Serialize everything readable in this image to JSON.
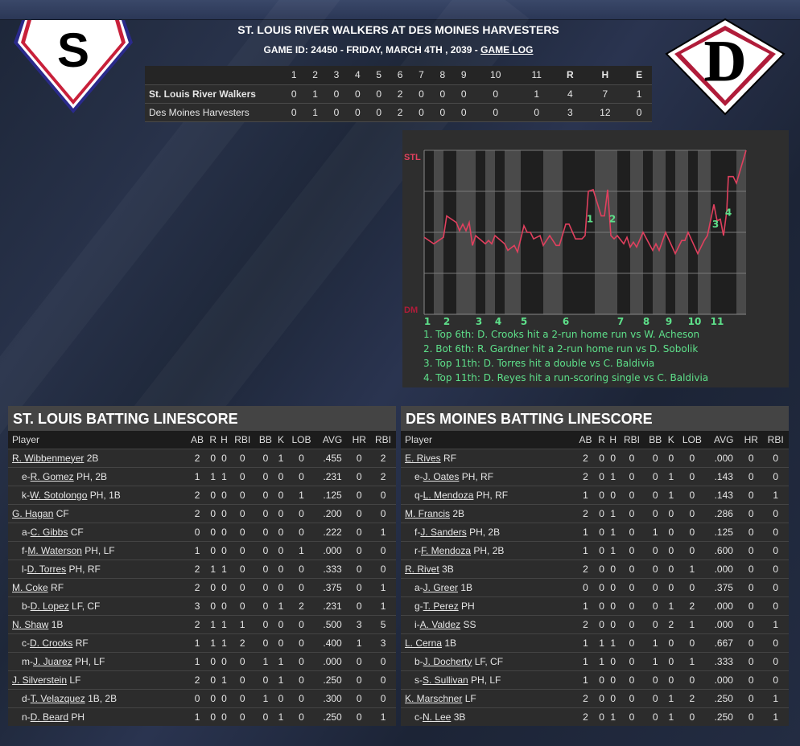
{
  "header": {
    "title": "ST. LOUIS RIVER WALKERS AT DES MOINES HARVESTERS",
    "game_info": "GAME ID: 24450 - FRIDAY, MARCH 4TH , 2039 - ",
    "game_log_link": "GAME LOG"
  },
  "logos": {
    "away_letter": "S",
    "home_letter": "D"
  },
  "linescore": {
    "columns": [
      "1",
      "2",
      "3",
      "4",
      "5",
      "6",
      "7",
      "8",
      "9",
      "10",
      "11",
      "R",
      "H",
      "E"
    ],
    "rows": [
      {
        "team": "St. Louis River Walkers",
        "values": [
          "0",
          "1",
          "0",
          "0",
          "0",
          "2",
          "0",
          "0",
          "0",
          "0",
          "1",
          "4",
          "7",
          "1"
        ]
      },
      {
        "team": "Des Moines Harvesters",
        "values": [
          "0",
          "1",
          "0",
          "0",
          "0",
          "2",
          "0",
          "0",
          "0",
          "0",
          "0",
          "3",
          "12",
          "0"
        ]
      }
    ]
  },
  "chart_data": {
    "type": "line",
    "top_label": "STL",
    "bottom_label": "DM",
    "ylim": [
      0,
      100
    ],
    "xlim": [
      0,
      100
    ],
    "grid": true,
    "x_ticks": [
      "1",
      "2",
      "3",
      "4",
      "5",
      "6",
      "7",
      "8",
      "9",
      "10",
      "11"
    ],
    "line_color": "#e0405e",
    "label_color": "#5ee08a",
    "top_label_color": "#e0405e",
    "bottom_label_color": "#b01c3a",
    "points": [
      [
        0,
        47
      ],
      [
        3,
        43
      ],
      [
        6,
        47
      ],
      [
        7,
        60
      ],
      [
        10,
        56
      ],
      [
        11,
        51
      ],
      [
        12,
        55
      ],
      [
        13,
        51
      ],
      [
        14,
        56
      ],
      [
        15,
        42
      ],
      [
        16,
        48
      ],
      [
        19,
        43
      ],
      [
        20,
        45
      ],
      [
        21,
        43
      ],
      [
        22,
        48
      ],
      [
        25,
        43
      ],
      [
        26,
        39
      ],
      [
        28,
        42
      ],
      [
        29,
        38
      ],
      [
        31,
        54
      ],
      [
        32,
        50
      ],
      [
        33,
        50
      ],
      [
        34,
        46
      ],
      [
        36,
        48
      ],
      [
        37,
        42
      ],
      [
        39,
        48
      ],
      [
        41,
        42
      ],
      [
        42,
        42
      ],
      [
        44,
        55
      ],
      [
        45,
        55
      ],
      [
        47,
        46
      ],
      [
        49,
        46
      ],
      [
        50,
        48
      ],
      [
        51,
        75
      ],
      [
        52.5,
        76
      ],
      [
        55,
        60
      ],
      [
        56,
        60
      ],
      [
        57,
        76
      ],
      [
        58,
        48
      ],
      [
        59,
        46
      ],
      [
        60,
        48
      ],
      [
        62,
        43
      ],
      [
        63,
        47
      ],
      [
        64,
        41
      ],
      [
        65,
        44
      ],
      [
        66,
        41
      ],
      [
        68,
        50
      ],
      [
        71,
        39
      ],
      [
        72,
        43
      ],
      [
        73,
        39
      ],
      [
        75,
        50
      ],
      [
        78,
        37
      ],
      [
        80,
        45
      ],
      [
        81,
        45
      ],
      [
        82,
        50
      ],
      [
        85,
        37
      ],
      [
        87,
        45
      ],
      [
        88,
        48
      ],
      [
        90,
        67
      ],
      [
        91,
        57
      ],
      [
        92,
        58
      ],
      [
        93,
        48
      ],
      [
        94,
        63
      ],
      [
        94.5,
        84
      ],
      [
        96,
        84
      ],
      [
        97,
        80
      ],
      [
        100,
        100
      ]
    ],
    "markers": [
      {
        "label": "1",
        "x": 51.5,
        "y": 58
      },
      {
        "label": "2",
        "x": 58.5,
        "y": 58
      },
      {
        "label": "3",
        "x": 90.5,
        "y": 55
      },
      {
        "label": "4",
        "x": 94.5,
        "y": 62
      }
    ],
    "annotations": [
      "1. Top 6th: D. Crooks hit a 2-run home run vs W. Acheson",
      "2. Bot 6th: R. Gardner hit a 2-run home run vs D. Sobolik",
      "3. Top 11th: D. Torres hit a double vs C. Baldivia",
      "4. Top 11th: D. Reyes hit a run-scoring single vs C. Baldivia"
    ]
  },
  "batting_columns": [
    "Player",
    "AB",
    "R",
    "H",
    "RBI",
    "BB",
    "K",
    "LOB",
    "AVG",
    "HR",
    "RBI"
  ],
  "away_batting": {
    "title": "ST. LOUIS BATTING LINESCORE",
    "rows": [
      {
        "prefix": "",
        "name": "R. Wibbenmeyer",
        "pos": "2B",
        "stats": [
          "2",
          "0",
          "0",
          "0",
          "0",
          "1",
          "0",
          ".455",
          "0",
          "2"
        ]
      },
      {
        "prefix": "e-",
        "name": "R. Gomez",
        "pos": "PH, 2B",
        "stats": [
          "1",
          "1",
          "1",
          "0",
          "0",
          "0",
          "0",
          ".231",
          "0",
          "2"
        ]
      },
      {
        "prefix": "k-",
        "name": "W. Sotolongo",
        "pos": "PH, 1B",
        "stats": [
          "2",
          "0",
          "0",
          "0",
          "0",
          "0",
          "1",
          ".125",
          "0",
          "0"
        ]
      },
      {
        "prefix": "",
        "name": "G. Hagan",
        "pos": "CF",
        "stats": [
          "2",
          "0",
          "0",
          "0",
          "0",
          "0",
          "0",
          ".200",
          "0",
          "0"
        ]
      },
      {
        "prefix": "a-",
        "name": "C. Gibbs",
        "pos": "CF",
        "stats": [
          "0",
          "0",
          "0",
          "0",
          "0",
          "0",
          "0",
          ".222",
          "0",
          "1"
        ]
      },
      {
        "prefix": "f-",
        "name": "M. Waterson",
        "pos": "PH, LF",
        "stats": [
          "1",
          "0",
          "0",
          "0",
          "0",
          "0",
          "1",
          ".000",
          "0",
          "0"
        ]
      },
      {
        "prefix": "l-",
        "name": "D. Torres",
        "pos": "PH, RF",
        "stats": [
          "2",
          "1",
          "1",
          "0",
          "0",
          "0",
          "0",
          ".333",
          "0",
          "0"
        ]
      },
      {
        "prefix": "",
        "name": "M. Coke",
        "pos": "RF",
        "stats": [
          "2",
          "0",
          "0",
          "0",
          "0",
          "0",
          "0",
          ".375",
          "0",
          "1"
        ]
      },
      {
        "prefix": "b-",
        "name": "D. Lopez",
        "pos": "LF, CF",
        "stats": [
          "3",
          "0",
          "0",
          "0",
          "0",
          "1",
          "2",
          ".231",
          "0",
          "1"
        ]
      },
      {
        "prefix": "",
        "name": "N. Shaw",
        "pos": "1B",
        "stats": [
          "2",
          "1",
          "1",
          "1",
          "0",
          "0",
          "0",
          ".500",
          "3",
          "5"
        ]
      },
      {
        "prefix": "c-",
        "name": "D. Crooks",
        "pos": "RF",
        "stats": [
          "1",
          "1",
          "1",
          "2",
          "0",
          "0",
          "0",
          ".400",
          "1",
          "3"
        ]
      },
      {
        "prefix": "m-",
        "name": "J. Juarez",
        "pos": "PH, LF",
        "stats": [
          "1",
          "0",
          "0",
          "0",
          "1",
          "1",
          "0",
          ".000",
          "0",
          "0"
        ]
      },
      {
        "prefix": "",
        "name": "J. Silverstein",
        "pos": "LF",
        "stats": [
          "2",
          "0",
          "1",
          "0",
          "0",
          "1",
          "0",
          ".250",
          "0",
          "0"
        ]
      },
      {
        "prefix": "d-",
        "name": "T. Velazquez",
        "pos": "1B, 2B",
        "stats": [
          "0",
          "0",
          "0",
          "0",
          "1",
          "0",
          "0",
          ".300",
          "0",
          "0"
        ]
      },
      {
        "prefix": "n-",
        "name": "D. Beard",
        "pos": "PH",
        "stats": [
          "1",
          "0",
          "0",
          "0",
          "0",
          "1",
          "0",
          ".250",
          "0",
          "1"
        ]
      }
    ]
  },
  "home_batting": {
    "title": "DES MOINES BATTING LINESCORE",
    "rows": [
      {
        "prefix": "",
        "name": "E. Rives",
        "pos": "RF",
        "stats": [
          "2",
          "0",
          "0",
          "0",
          "0",
          "0",
          "0",
          ".000",
          "0",
          "0"
        ]
      },
      {
        "prefix": "e-",
        "name": "J. Oates",
        "pos": "PH, RF",
        "stats": [
          "2",
          "0",
          "1",
          "0",
          "0",
          "1",
          "0",
          ".143",
          "0",
          "0"
        ]
      },
      {
        "prefix": "q-",
        "name": "L. Mendoza",
        "pos": "PH, RF",
        "stats": [
          "1",
          "0",
          "0",
          "0",
          "0",
          "1",
          "0",
          ".143",
          "0",
          "1"
        ]
      },
      {
        "prefix": "",
        "name": "M. Francis",
        "pos": "2B",
        "stats": [
          "2",
          "0",
          "1",
          "0",
          "0",
          "0",
          "0",
          ".286",
          "0",
          "0"
        ]
      },
      {
        "prefix": "f-",
        "name": "J. Sanders",
        "pos": "PH, 2B",
        "stats": [
          "1",
          "0",
          "1",
          "0",
          "1",
          "0",
          "0",
          ".125",
          "0",
          "0"
        ]
      },
      {
        "prefix": "r-",
        "name": "F. Mendoza",
        "pos": "PH, 2B",
        "stats": [
          "1",
          "0",
          "1",
          "0",
          "0",
          "0",
          "0",
          ".600",
          "0",
          "0"
        ]
      },
      {
        "prefix": "",
        "name": "R. Rivet",
        "pos": "3B",
        "stats": [
          "2",
          "0",
          "0",
          "0",
          "0",
          "0",
          "1",
          ".000",
          "0",
          "0"
        ]
      },
      {
        "prefix": "a-",
        "name": "J. Greer",
        "pos": "1B",
        "stats": [
          "0",
          "0",
          "0",
          "0",
          "0",
          "0",
          "0",
          ".375",
          "0",
          "0"
        ]
      },
      {
        "prefix": "g-",
        "name": "T. Perez",
        "pos": "PH",
        "stats": [
          "1",
          "0",
          "0",
          "0",
          "0",
          "1",
          "2",
          ".000",
          "0",
          "0"
        ]
      },
      {
        "prefix": "i-",
        "name": "A. Valdez",
        "pos": "SS",
        "stats": [
          "2",
          "0",
          "0",
          "0",
          "0",
          "2",
          "1",
          ".000",
          "0",
          "1"
        ]
      },
      {
        "prefix": "",
        "name": "L. Cerna",
        "pos": "1B",
        "stats": [
          "1",
          "1",
          "1",
          "0",
          "1",
          "0",
          "0",
          ".667",
          "0",
          "0"
        ]
      },
      {
        "prefix": "b-",
        "name": "J. Docherty",
        "pos": "LF, CF",
        "stats": [
          "1",
          "1",
          "0",
          "0",
          "1",
          "0",
          "1",
          ".333",
          "0",
          "0"
        ]
      },
      {
        "prefix": "s-",
        "name": "S. Sullivan",
        "pos": "PH, LF",
        "stats": [
          "1",
          "0",
          "0",
          "0",
          "0",
          "0",
          "0",
          ".000",
          "0",
          "0"
        ]
      },
      {
        "prefix": "",
        "name": "K. Marschner",
        "pos": "LF",
        "stats": [
          "2",
          "0",
          "0",
          "0",
          "0",
          "1",
          "2",
          ".250",
          "0",
          "1"
        ]
      },
      {
        "prefix": "c-",
        "name": "N. Lee",
        "pos": "3B",
        "stats": [
          "2",
          "0",
          "1",
          "0",
          "0",
          "1",
          "0",
          ".250",
          "0",
          "1"
        ]
      }
    ]
  }
}
